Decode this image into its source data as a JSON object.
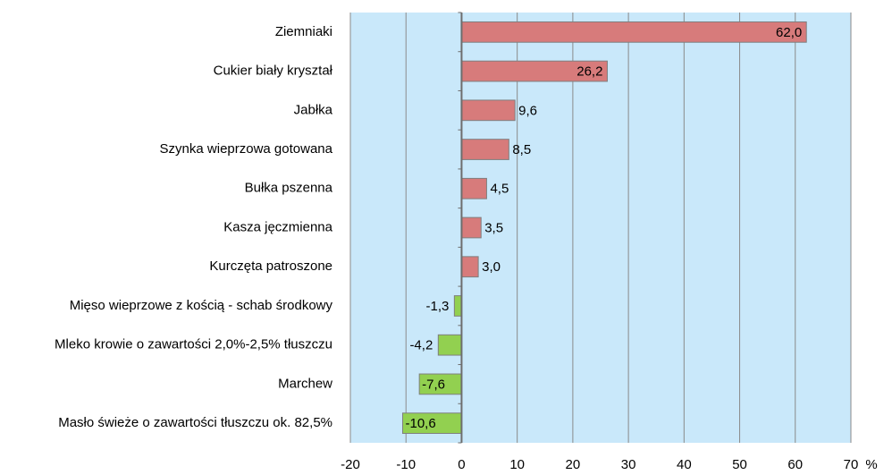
{
  "chart_data": {
    "type": "hbar",
    "categories": [
      "Ziemniaki",
      "Cukier biały kryształ",
      "Jabłka",
      "Szynka wieprzowa gotowana",
      "Bułka pszenna",
      "Kasza jęczmienna",
      "Kurczęta patroszone",
      "Mięso wieprzowe z kością - schab środkowy",
      "Mleko krowie o zawartości 2,0%-2,5% tłuszczu",
      "Marchew",
      "Masło świeże o zawartości tłuszczu ok. 82,5%"
    ],
    "values": [
      62.0,
      26.2,
      9.6,
      8.5,
      4.5,
      3.5,
      3.0,
      -1.3,
      -4.2,
      -7.6,
      -10.6
    ],
    "value_labels": [
      "62,0",
      "26,2",
      "9,6",
      "8,5",
      "4,5",
      "3,5",
      "3,0",
      "-1,3",
      "-4,2",
      "-7,6",
      "-10,6"
    ],
    "colors": [
      "#d77b7b",
      "#d77b7b",
      "#d77b7b",
      "#d77b7b",
      "#d77b7b",
      "#d77b7b",
      "#d77b7b",
      "#92d050",
      "#92d050",
      "#92d050",
      "#92d050"
    ],
    "xlim": [
      -20,
      70
    ],
    "xticks": [
      -20,
      -10,
      0,
      10,
      20,
      30,
      40,
      50,
      60,
      70
    ],
    "x_label": "%",
    "grid": true
  }
}
